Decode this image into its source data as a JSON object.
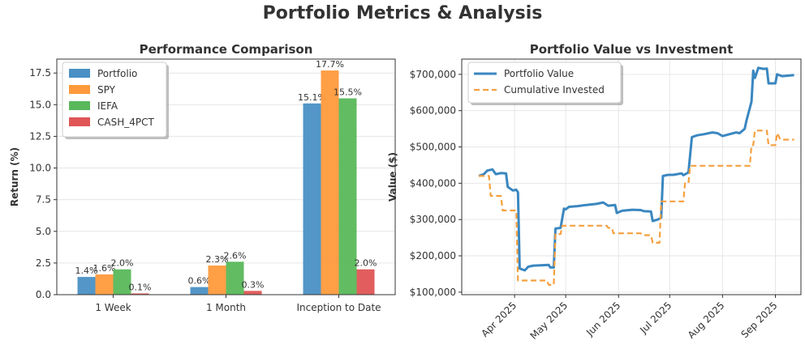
{
  "figure_title": "Portfolio Metrics & Analysis",
  "colors": {
    "portfolio": "#4a90c4",
    "spy": "#ff9a3c",
    "iefa": "#58b85a",
    "cash": "#e05555",
    "value_line": "#3a87c0",
    "invested_line": "#f5a040",
    "grid": "#e6e6e6",
    "axis": "#333333"
  },
  "chart_data": [
    {
      "type": "bar",
      "title": "Performance Comparison",
      "xlabel": "",
      "ylabel": "Return (%)",
      "categories": [
        "1 Week",
        "1 Month",
        "Inception to Date"
      ],
      "series": [
        {
          "name": "Portfolio",
          "values": [
            1.4,
            0.6,
            15.1
          ],
          "labels": [
            "1.4%",
            "0.6%",
            "15.1%"
          ],
          "color": "#4a90c4"
        },
        {
          "name": "SPY",
          "values": [
            1.6,
            2.3,
            17.7
          ],
          "labels": [
            "1.6%",
            "2.3%",
            "17.7%"
          ],
          "color": "#ff9a3c"
        },
        {
          "name": "IEFA",
          "values": [
            2.0,
            2.6,
            15.5
          ],
          "labels": [
            "2.0%",
            "2.6%",
            "15.5%"
          ],
          "color": "#58b85a"
        },
        {
          "name": "CASH_4PCT",
          "values": [
            0.1,
            0.3,
            2.0
          ],
          "labels": [
            "0.1%",
            "0.3%",
            "2.0%"
          ],
          "color": "#e05555"
        }
      ],
      "ylim": [
        0,
        18.6
      ],
      "yticks": [
        0.0,
        2.5,
        5.0,
        7.5,
        10.0,
        12.5,
        15.0,
        17.5
      ],
      "ytick_labels": [
        "0.0",
        "2.5",
        "5.0",
        "7.5",
        "10.0",
        "12.5",
        "15.0",
        "17.5"
      ],
      "grid": true,
      "legend": "top-left"
    },
    {
      "type": "line",
      "title": "Portfolio Value vs Investment",
      "xlabel": "",
      "ylabel": "Value ($)",
      "xlim": [
        "2025-03-01",
        "2025-09-16"
      ],
      "ylim": [
        93000,
        742000
      ],
      "xticks": [
        "2025-04-01",
        "2025-05-01",
        "2025-06-01",
        "2025-07-01",
        "2025-08-01",
        "2025-09-01"
      ],
      "xtick_labels": [
        "Apr 2025",
        "May 2025",
        "Jun 2025",
        "Jul 2025",
        "Aug 2025",
        "Sep 2025"
      ],
      "yticks": [
        100000,
        200000,
        300000,
        400000,
        500000,
        600000,
        700000
      ],
      "ytick_labels": [
        "$100,000",
        "$200,000",
        "$300,000",
        "$400,000",
        "$500,000",
        "$600,000",
        "$700,000"
      ],
      "grid": true,
      "legend": "top-left",
      "series": [
        {
          "name": "Portfolio Value",
          "style": "solid",
          "color": "#3a87c0",
          "points": [
            [
              "2025-03-11",
              420000
            ],
            [
              "2025-03-14",
              425000
            ],
            [
              "2025-03-16",
              435000
            ],
            [
              "2025-03-19",
              438000
            ],
            [
              "2025-03-21",
              425000
            ],
            [
              "2025-03-24",
              428000
            ],
            [
              "2025-03-27",
              427000
            ],
            [
              "2025-03-28",
              390000
            ],
            [
              "2025-03-31",
              380000
            ],
            [
              "2025-04-02",
              382000
            ],
            [
              "2025-04-03",
              375000
            ],
            [
              "2025-04-04",
              165000
            ],
            [
              "2025-04-07",
              160000
            ],
            [
              "2025-04-09",
              170000
            ],
            [
              "2025-04-12",
              173000
            ],
            [
              "2025-04-16",
              174000
            ],
            [
              "2025-04-21",
              175000
            ],
            [
              "2025-04-22",
              168000
            ],
            [
              "2025-04-24",
              168000
            ],
            [
              "2025-04-25",
              275000
            ],
            [
              "2025-04-28",
              277000
            ],
            [
              "2025-04-30",
              330000
            ],
            [
              "2025-05-01",
              328000
            ],
            [
              "2025-05-03",
              335000
            ],
            [
              "2025-05-08",
              337000
            ],
            [
              "2025-05-13",
              340000
            ],
            [
              "2025-05-19",
              343000
            ],
            [
              "2025-05-23",
              347000
            ],
            [
              "2025-05-26",
              338000
            ],
            [
              "2025-05-30",
              340000
            ],
            [
              "2025-05-31",
              318000
            ],
            [
              "2025-06-03",
              324000
            ],
            [
              "2025-06-09",
              327000
            ],
            [
              "2025-06-14",
              326000
            ],
            [
              "2025-06-16",
              323000
            ],
            [
              "2025-06-20",
              322000
            ],
            [
              "2025-06-21",
              296000
            ],
            [
              "2025-06-24",
              300000
            ],
            [
              "2025-06-26",
              305000
            ],
            [
              "2025-06-27",
              420000
            ],
            [
              "2025-06-30",
              423000
            ],
            [
              "2025-07-03",
              423000
            ],
            [
              "2025-07-08",
              427000
            ],
            [
              "2025-07-09",
              422000
            ],
            [
              "2025-07-12",
              430000
            ],
            [
              "2025-07-14",
              527000
            ],
            [
              "2025-07-17",
              532000
            ],
            [
              "2025-07-21",
              535000
            ],
            [
              "2025-07-26",
              540000
            ],
            [
              "2025-07-29",
              538000
            ],
            [
              "2025-08-01",
              530000
            ],
            [
              "2025-08-05",
              535000
            ],
            [
              "2025-08-09",
              540000
            ],
            [
              "2025-08-11",
              538000
            ],
            [
              "2025-08-14",
              550000
            ],
            [
              "2025-08-15",
              572000
            ],
            [
              "2025-08-18",
              625000
            ],
            [
              "2025-08-19",
              710000
            ],
            [
              "2025-08-20",
              690000
            ],
            [
              "2025-08-22",
              718000
            ],
            [
              "2025-08-25",
              715000
            ],
            [
              "2025-08-27",
              716000
            ],
            [
              "2025-08-28",
              675000
            ],
            [
              "2025-09-01",
              675000
            ],
            [
              "2025-09-02",
              700000
            ],
            [
              "2025-09-05",
              695000
            ],
            [
              "2025-09-12",
              698000
            ]
          ]
        },
        {
          "name": "Cumulative Invested",
          "style": "dashed",
          "color": "#f5a040",
          "points": [
            [
              "2025-03-11",
              420000
            ],
            [
              "2025-03-17",
              420000
            ],
            [
              "2025-03-18",
              365000
            ],
            [
              "2025-03-24",
              365000
            ],
            [
              "2025-03-25",
              325000
            ],
            [
              "2025-04-02",
              325000
            ],
            [
              "2025-04-03",
              132000
            ],
            [
              "2025-04-20",
              132000
            ],
            [
              "2025-04-21",
              120000
            ],
            [
              "2025-04-24",
              120000
            ],
            [
              "2025-04-25",
              260000
            ],
            [
              "2025-04-28",
              260000
            ],
            [
              "2025-04-29",
              283000
            ],
            [
              "2025-05-25",
              283000
            ],
            [
              "2025-05-26",
              277000
            ],
            [
              "2025-05-28",
              277000
            ],
            [
              "2025-05-29",
              262000
            ],
            [
              "2025-06-14",
              262000
            ],
            [
              "2025-06-15",
              257000
            ],
            [
              "2025-06-20",
              257000
            ],
            [
              "2025-06-21",
              236000
            ],
            [
              "2025-06-25",
              236000
            ],
            [
              "2025-06-26",
              350000
            ],
            [
              "2025-07-09",
              350000
            ],
            [
              "2025-07-10",
              400000
            ],
            [
              "2025-07-12",
              400000
            ],
            [
              "2025-07-13",
              448000
            ],
            [
              "2025-08-17",
              448000
            ],
            [
              "2025-08-18",
              505000
            ],
            [
              "2025-08-19",
              505000
            ],
            [
              "2025-08-20",
              545000
            ],
            [
              "2025-08-27",
              545000
            ],
            [
              "2025-08-28",
              505000
            ],
            [
              "2025-09-01",
              505000
            ],
            [
              "2025-09-02",
              538000
            ],
            [
              "2025-09-04",
              520000
            ],
            [
              "2025-09-12",
              520000
            ]
          ]
        }
      ]
    }
  ]
}
